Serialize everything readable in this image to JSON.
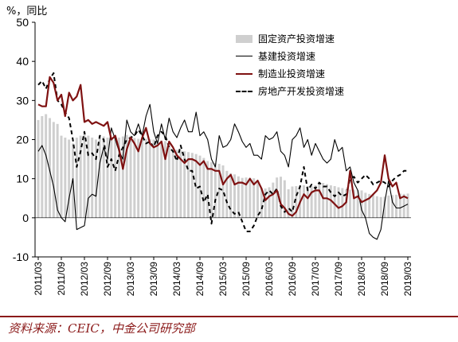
{
  "unit_label": "%，同比",
  "source": "资料来源：CEIC，中金公司研究部",
  "chart_data": {
    "type": "bar+line",
    "title": "",
    "xlabel": "",
    "ylabel": "%，同比",
    "ylim": [
      -10,
      50
    ],
    "yticks": [
      -10,
      0,
      10,
      20,
      30,
      40,
      50
    ],
    "xticks": [
      "2011/03",
      "2011/09",
      "2012/03",
      "2012/09",
      "2013/03",
      "2013/09",
      "2014/03",
      "2014/09",
      "2015/03",
      "2015/09",
      "2016/03",
      "2016/09",
      "2017/03",
      "2017/09",
      "2018/03",
      "2018/09",
      "2019/03"
    ],
    "x_start": "2011/03",
    "x_end": "2019/03",
    "grid": false,
    "legend_position": "top-right",
    "series": [
      {
        "name": "固定资产投资增速",
        "type": "bar",
        "color": "#cfcfcf",
        "values": [
          25.0,
          26.0,
          26.5,
          25.5,
          24.5,
          24.0,
          21.0,
          20.5,
          20.0,
          19.0,
          20.5,
          21.0,
          21.5,
          21.0,
          20.5,
          20.0,
          21.0,
          20.8,
          20.5,
          20.5,
          20.0,
          20.5,
          20.8,
          21.2,
          21.0,
          20.4,
          20.2,
          20.3,
          20.2,
          20.1,
          20.0,
          19.9,
          19.8,
          19.6,
          19.4,
          17.6,
          17.4,
          17.2,
          17.0,
          16.8,
          16.6,
          16.3,
          15.9,
          15.3,
          14.5,
          14.2,
          14.0,
          13.8,
          13.4,
          12.0,
          11.4,
          11.1,
          10.6,
          10.2,
          10.3,
          10.2,
          10.1,
          9.2,
          7.6,
          7.5,
          7.8,
          9.0,
          10.3,
          10.5,
          9.6,
          7.3,
          8.0,
          8.1,
          8.2,
          8.3,
          8.1,
          8.1,
          8.3,
          8.7,
          8.9,
          8.6,
          8.3,
          8.1,
          7.8,
          7.6,
          7.3,
          7.2,
          7.2,
          7.1,
          7.0,
          6.4,
          6.1,
          6.0,
          5.5,
          5.3,
          5.4,
          5.7,
          5.8,
          5.9,
          6.2,
          6.1,
          6.2
        ]
      },
      {
        "name": "基建投资增速",
        "type": "line",
        "color": "#000000",
        "values": [
          17.0,
          18.5,
          16.0,
          12.0,
          8.0,
          2.0,
          0.0,
          -1.0,
          5.0,
          10.0,
          -3.0,
          -2.5,
          -2.0,
          5.0,
          6.0,
          5.5,
          14.0,
          18.0,
          15.0,
          23.0,
          20.0,
          17.0,
          15.0,
          25.0,
          22.0,
          21.0,
          24.0,
          21.0,
          26.0,
          29.0,
          22.0,
          19.0,
          24.0,
          20.0,
          25.5,
          22.0,
          20.5,
          23.0,
          25.0,
          22.0,
          22.0,
          27.0,
          21.0,
          22.0,
          20.0,
          15.0,
          13.0,
          21.0,
          18.0,
          18.5,
          20.0,
          24.0,
          22.0,
          19.5,
          18.0,
          19.0,
          16.0,
          16.0,
          15.0,
          21.0,
          20.0,
          20.5,
          22.0,
          17.0,
          16.0,
          13.0,
          20.0,
          21.0,
          23.0,
          18.0,
          20.0,
          16.0,
          19.0,
          17.0,
          15.0,
          14.0,
          15.0,
          20.0,
          17.0,
          18.0,
          12.0,
          13.0,
          9.0,
          7.0,
          2.0,
          0.0,
          -4.0,
          -5.0,
          -5.5,
          -3.0,
          4.0,
          9.5,
          4.0,
          2.5,
          2.5,
          3.0,
          3.5
        ]
      },
      {
        "name": "制造业投资增速",
        "type": "line",
        "color": "#7f1111",
        "values": [
          29.0,
          28.5,
          28.5,
          36.0,
          34.5,
          30.0,
          31.5,
          26.0,
          32.0,
          30.0,
          31.0,
          34.0,
          24.5,
          25.0,
          24.0,
          24.5,
          24.0,
          23.5,
          24.5,
          20.0,
          21.0,
          17.5,
          12.5,
          17.5,
          20.5,
          19.0,
          17.0,
          20.5,
          23.0,
          19.0,
          18.0,
          18.5,
          19.5,
          15.0,
          19.5,
          18.0,
          16.0,
          15.0,
          14.0,
          15.0,
          15.0,
          14.5,
          13.5,
          14.5,
          12.5,
          12.5,
          12.0,
          12.0,
          8.5,
          10.0,
          11.0,
          8.5,
          9.0,
          9.0,
          8.5,
          10.0,
          8.5,
          9.5,
          7.5,
          4.5,
          5.5,
          6.0,
          7.0,
          3.5,
          2.5,
          1.0,
          0.5,
          1.5,
          4.0,
          6.0,
          5.0,
          6.5,
          7.0,
          7.0,
          5.0,
          5.0,
          4.5,
          3.5,
          2.5,
          3.0,
          4.0,
          12.0,
          5.0,
          5.5,
          4.0,
          4.5,
          5.0,
          6.0,
          7.0,
          9.0,
          16.0,
          10.0,
          8.0,
          9.0,
          5.0,
          5.5,
          5.0
        ]
      },
      {
        "name": "房地产开发投资增速",
        "type": "dashed-line",
        "color": "#000000",
        "values": [
          34.0,
          35.0,
          33.0,
          35.5,
          37.0,
          30.0,
          29.0,
          27.0,
          25.5,
          20.0,
          13.0,
          17.0,
          22.0,
          16.0,
          16.5,
          15.0,
          21.0,
          20.0,
          13.0,
          15.0,
          12.0,
          16.0,
          18.0,
          20.0,
          20.5,
          21.0,
          22.5,
          21.0,
          19.0,
          19.5,
          18.0,
          21.0,
          22.0,
          21.0,
          18.0,
          17.0,
          14.5,
          18.5,
          15.0,
          12.0,
          12.0,
          7.5,
          8.0,
          4.0,
          6.0,
          -1.5,
          4.5,
          7.5,
          7.0,
          4.0,
          2.0,
          1.0,
          1.5,
          -1.0,
          -3.5,
          -3.5,
          -2.0,
          0.5,
          2.0,
          6.0,
          7.0,
          6.0,
          7.5,
          3.0,
          1.5,
          2.5,
          1.5,
          5.5,
          8.0,
          13.0,
          7.0,
          8.5,
          7.5,
          9.0,
          8.0,
          8.0,
          6.5,
          5.5,
          6.5,
          5.5,
          6.0,
          10.0,
          10.5,
          9.0,
          10.0,
          11.0,
          10.0,
          8.5,
          9.0,
          9.5,
          9.0,
          8.0,
          9.5,
          10.5,
          11.0,
          12.0,
          12.0
        ]
      }
    ]
  }
}
